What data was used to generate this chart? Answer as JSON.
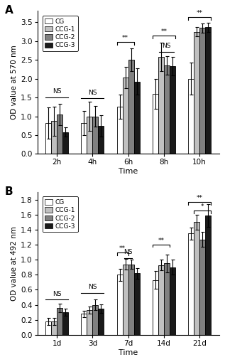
{
  "panel_A": {
    "title": "A",
    "ylabel": "OD value at 570 nm",
    "xlabel": "Time",
    "xtick_labels": [
      "2h",
      "4h",
      "6h",
      "8h",
      "10h"
    ],
    "ylim": [
      0.0,
      3.8
    ],
    "yticks": [
      0.0,
      0.5,
      1.0,
      1.5,
      2.0,
      2.5,
      3.0,
      3.5
    ],
    "bar_values": [
      [
        0.82,
        0.82,
        1.25,
        1.6,
        2.0
      ],
      [
        0.87,
        1.0,
        2.03,
        2.58,
        3.25
      ],
      [
        1.05,
        1.0,
        2.5,
        2.35,
        3.35
      ],
      [
        0.58,
        0.75,
        1.92,
        2.33,
        3.37
      ]
    ],
    "bar_errors": [
      [
        0.42,
        0.32,
        0.32,
        0.4,
        0.42
      ],
      [
        0.38,
        0.38,
        0.28,
        0.38,
        0.12
      ],
      [
        0.28,
        0.28,
        0.3,
        0.25,
        0.12
      ],
      [
        0.12,
        0.28,
        0.35,
        0.25,
        0.12
      ]
    ],
    "bar_colors": [
      "#ffffff",
      "#c0c0c0",
      "#808080",
      "#1a1a1a"
    ],
    "bar_edge_colors": [
      "#000000",
      "#000000",
      "#000000",
      "#000000"
    ],
    "legend_labels": [
      "CG",
      "CCG-1",
      "CCG-2",
      "CCG-3"
    ]
  },
  "panel_B": {
    "title": "B",
    "ylabel": "OD value at 492 nm",
    "xlabel": "Time",
    "xtick_labels": [
      "1d",
      "3d",
      "7d",
      "14d",
      "21d"
    ],
    "ylim": [
      0.0,
      1.9
    ],
    "yticks": [
      0.0,
      0.2,
      0.4,
      0.6,
      0.8,
      1.0,
      1.2,
      1.4,
      1.6,
      1.8
    ],
    "bar_values": [
      [
        0.18,
        0.28,
        0.8,
        0.73,
        1.35
      ],
      [
        0.18,
        0.33,
        0.94,
        0.93,
        1.5
      ],
      [
        0.36,
        0.4,
        0.94,
        0.95,
        1.27
      ],
      [
        0.3,
        0.35,
        0.82,
        0.9,
        1.59
      ]
    ],
    "bar_errors": [
      [
        0.05,
        0.04,
        0.08,
        0.12,
        0.08
      ],
      [
        0.05,
        0.05,
        0.07,
        0.07,
        0.1
      ],
      [
        0.06,
        0.07,
        0.06,
        0.12,
        0.1
      ],
      [
        0.05,
        0.06,
        0.07,
        0.1,
        0.15
      ]
    ],
    "bar_colors": [
      "#ffffff",
      "#c0c0c0",
      "#808080",
      "#1a1a1a"
    ],
    "bar_edge_colors": [
      "#000000",
      "#000000",
      "#000000",
      "#000000"
    ],
    "legend_labels": [
      "CG",
      "CCG-1",
      "CCG-2",
      "CCG-3"
    ]
  },
  "figure": {
    "figsize": [
      3.17,
      5.09
    ],
    "dpi": 100,
    "bar_width": 0.16,
    "background_color": "#ffffff"
  }
}
